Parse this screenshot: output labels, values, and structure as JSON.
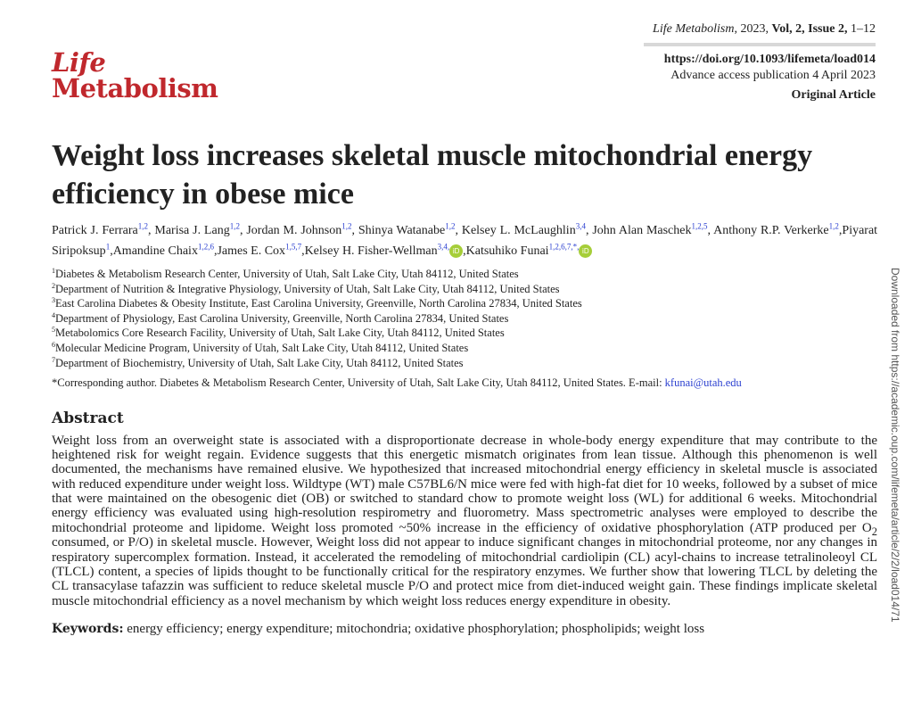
{
  "logo": {
    "line1": "Life",
    "line2": "Metabolism"
  },
  "header": {
    "journal": "Life Metabolism",
    "citation_rest": ", 2023, ",
    "volume_issue": "Vol, 2, Issue 2,",
    "pages": " 1–12",
    "doi": "https://doi.org/10.1093/lifemeta/load014",
    "advance": "Advance access publication 4 April 2023",
    "article_type": "Original Article"
  },
  "title": "Weight loss increases skeletal muscle mitochondrial energy efficiency in obese mice",
  "authors": [
    {
      "name": "Patrick J. Ferrara",
      "aff": "1,2"
    },
    {
      "name": "Marisa J. Lang",
      "aff": "1,2"
    },
    {
      "name": "Jordan M. Johnson",
      "aff": "1,2"
    },
    {
      "name": "Shinya Watanabe",
      "aff": "1,2"
    },
    {
      "name": "Kelsey L. McLaughlin",
      "aff": "3,4"
    },
    {
      "name": "John Alan Maschek",
      "aff": "1,2,5"
    },
    {
      "name": "Anthony R.P. Verkerke",
      "aff": "1,2"
    },
    {
      "name": "Piyarat Siripoksup",
      "aff": "1"
    },
    {
      "name": "Amandine Chaix",
      "aff": "1,2,6"
    },
    {
      "name": "James E. Cox",
      "aff": "1,5,7"
    },
    {
      "name": "Kelsey H. Fisher-Wellman",
      "aff": "3,4,"
    },
    {
      "name": "Katsuhiko Funai",
      "aff": "1,2,6,7,*,"
    }
  ],
  "orcid_label": "iD",
  "affiliations": [
    {
      "n": "1",
      "text": "Diabetes & Metabolism Research Center, University of Utah, Salt Lake City, Utah 84112, United States"
    },
    {
      "n": "2",
      "text": "Department of Nutrition & Integrative Physiology, University of Utah, Salt Lake City, Utah 84112, United States"
    },
    {
      "n": "3",
      "text": "East Carolina Diabetes & Obesity Institute, East Carolina University, Greenville, North Carolina 27834, United States"
    },
    {
      "n": "4",
      "text": "Department of Physiology, East Carolina University, Greenville, North Carolina 27834, United States"
    },
    {
      "n": "5",
      "text": "Metabolomics Core Research Facility, University of Utah, Salt Lake City, Utah 84112, United States"
    },
    {
      "n": "6",
      "text": "Molecular Medicine Program, University of Utah, Salt Lake City, Utah 84112, United States"
    },
    {
      "n": "7",
      "text": "Department of Biochemistry, University of Utah, Salt Lake City, Utah 84112, United States"
    }
  ],
  "corresponding": {
    "text": "*Corresponding author. Diabetes & Metabolism Research Center, University of Utah, Salt Lake City, Utah 84112, United States. E-mail: ",
    "email": "kfunai@utah.edu"
  },
  "abstract": {
    "heading": "Abstract",
    "part1": "Weight loss from an overweight state is associated with a disproportionate decrease in whole-body energy expenditure that may contribute to the heightened risk for weight regain. Evidence suggests that this energetic mismatch originates from lean tissue. Although this phenomenon is well documented, the mechanisms have remained elusive. We hypothesized that increased mitochondrial energy efficiency in skeletal muscle is associated with reduced expenditure under weight loss. Wildtype (WT) male C57BL6/N mice were fed with high-fat diet for 10 weeks, followed by a subset of mice that were maintained on the obesogenic diet (OB) or switched to standard chow to promote weight loss (WL) for additional 6 weeks. Mitochondrial energy efficiency was evaluated using high-resolution respirometry and fluorometry. Mass spectrometric analyses were employed to describe the mitochondrial proteome and lipidome. Weight loss promoted ~50% increase in the efficiency of oxidative phosphorylation (ATP produced per O",
    "sub": "2",
    "part2": " consumed, or P/O) in skeletal muscle. However, Weight loss did not appear to induce significant changes in mitochondrial proteome, nor any changes in respiratory supercomplex formation. Instead, it accelerated the remodeling of mitochondrial cardiolipin (CL) acyl-chains to increase tetralinoleoyl CL (TLCL) content, a species of lipids thought to be functionally critical for the respiratory enzymes. We further show that lowering TLCL by deleting the CL transacylase tafazzin was sufficient to reduce skeletal muscle P/O and protect mice from diet-induced weight gain. These findings implicate skeletal muscle mitochondrial efficiency as a novel mechanism by which weight loss reduces energy expenditure in obesity."
  },
  "keywords": {
    "label": "Keywords:",
    "text": " energy efficiency; energy expenditure; mitochondria; oxidative phosphorylation; phospholipids; weight loss"
  },
  "watermark": "Downloaded from https://academic.oup.com/lifemeta/article/2/2/load014/71"
}
